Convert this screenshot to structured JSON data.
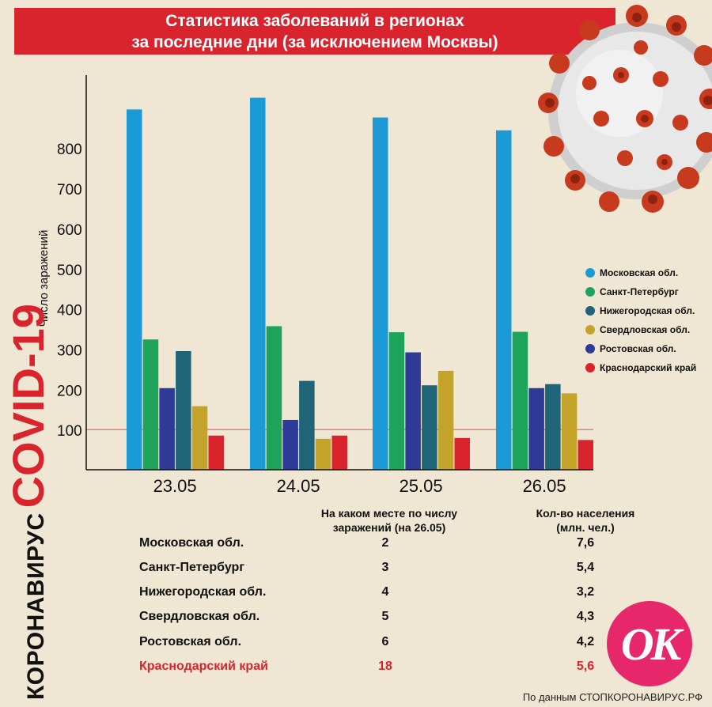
{
  "header": {
    "title_line1": "Статистика заболеваний в регионах",
    "title_line2": "за последние дни (за исключением Москвы)"
  },
  "chart_data": {
    "type": "bar",
    "ylabel": "Число заражений",
    "yticks": [
      100,
      200,
      300,
      400,
      500,
      600,
      700,
      800
    ],
    "ylim": [
      0,
      950
    ],
    "categories": [
      "23.05",
      "24.05",
      "25.05",
      "26.05"
    ],
    "series": [
      {
        "name": "Московская обл.",
        "color": "#1c9ad6",
        "values": [
          896,
          925,
          876,
          844
        ]
      },
      {
        "name": "Санкт-Петербург",
        "color": "#1ea35a",
        "values": [
          324,
          357,
          342,
          343
        ]
      },
      {
        "name": "Нижегородская обл.",
        "color": "#1f6577",
        "values": [
          295,
          221,
          210,
          213
        ]
      },
      {
        "name": "Свердловская обл.",
        "color": "#c4a32b",
        "values": [
          158,
          77,
          246,
          190
        ]
      },
      {
        "name": "Ростовская обл.",
        "color": "#2d3a97",
        "values": [
          203,
          124,
          292,
          203
        ]
      },
      {
        "name": "Краснодарский край",
        "color": "#d9232d",
        "values": [
          85,
          85,
          79,
          74
        ]
      }
    ],
    "bar_order": [
      0,
      1,
      4,
      2,
      3,
      5
    ],
    "reference_line": 100,
    "grid": false,
    "legend": "right"
  },
  "table": {
    "col_place_line1": "На каком месте по числу",
    "col_place_line2": "заражений (на 26.05)",
    "col_pop_line1": "Кол-во населения",
    "col_pop_line2": "(млн. чел.)",
    "rows": [
      {
        "region": "Московская обл.",
        "place": "2",
        "population": "7,6",
        "highlight": false
      },
      {
        "region": "Санкт-Петербург",
        "place": "3",
        "population": "5,4",
        "highlight": false
      },
      {
        "region": "Нижегородская обл.",
        "place": "4",
        "population": "3,2",
        "highlight": false
      },
      {
        "region": "Свердловская обл.",
        "place": "5",
        "population": "4,3",
        "highlight": false
      },
      {
        "region": "Ростовская обл.",
        "place": "6",
        "population": "4,2",
        "highlight": false
      },
      {
        "region": "Краснодарский край",
        "place": "18",
        "population": "5,6",
        "highlight": true
      }
    ]
  },
  "side": {
    "line1": "КОРОНАВИРУС",
    "line2": "COVID-19"
  },
  "logo": {
    "text": "OK",
    "color": "#e6276a"
  },
  "footer": {
    "source": "По данным СТОПКОРОНАВИРУС.РФ"
  }
}
